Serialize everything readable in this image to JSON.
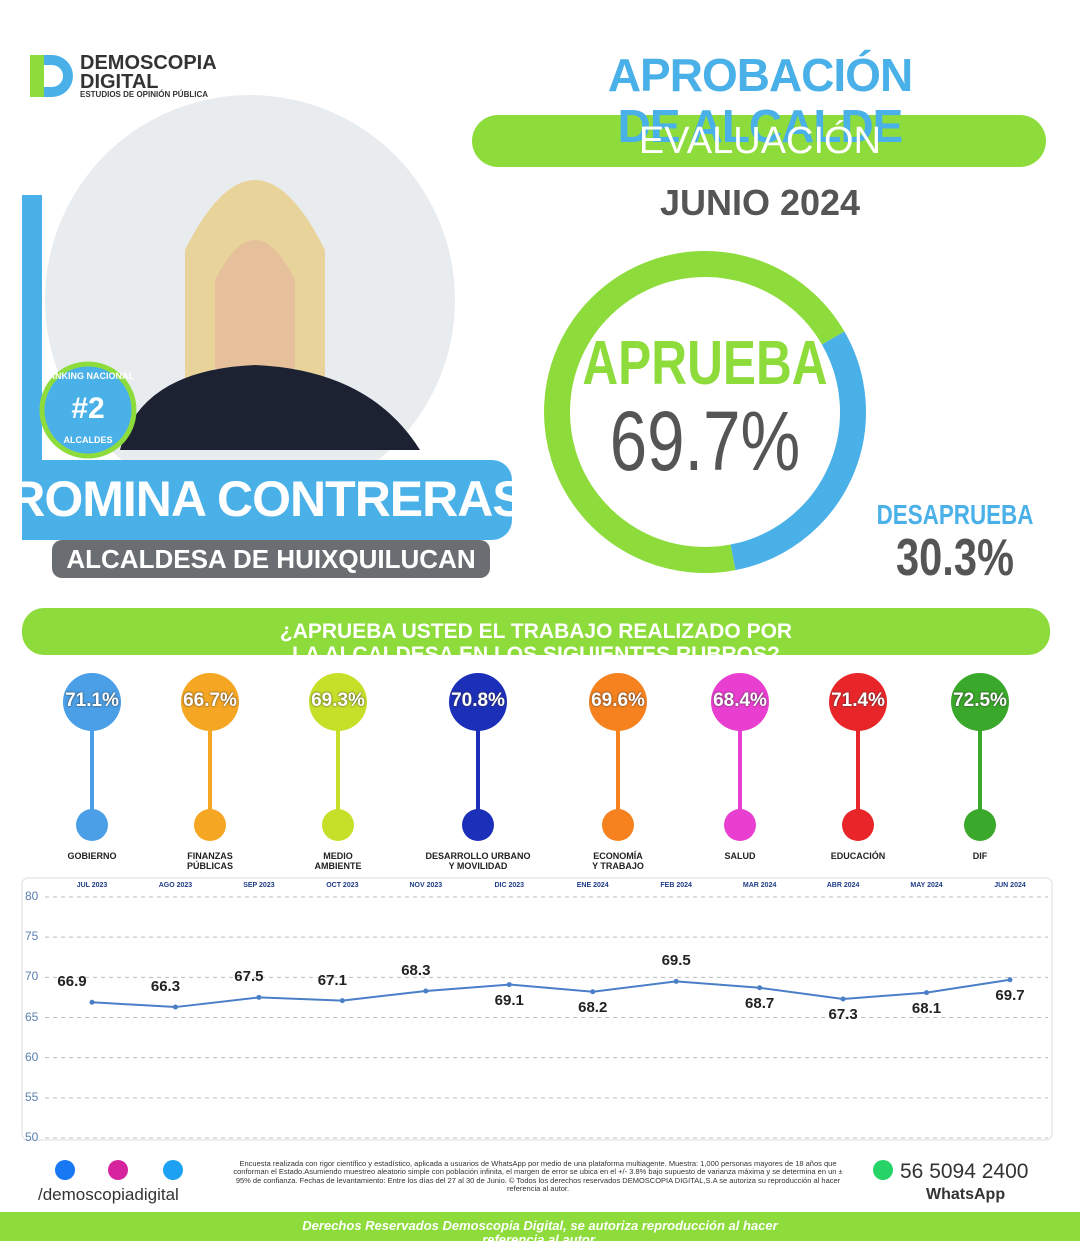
{
  "brand": {
    "name1": "DEMOSCOPIA",
    "name2": "DIGITAL",
    "tagline": "ESTUDIOS DE OPINIÓN PÚBLICA"
  },
  "header": {
    "title": "APROBACIÓN DE ALCALDE",
    "subtitle": "EVALUACIÓN DEL MES",
    "period": "JUNIO 2024"
  },
  "profile": {
    "badge_top": "RANKING NACIONAL",
    "badge_rank": "#2",
    "badge_bottom": "ALCALDES",
    "name": "ROMINA CONTRERAS",
    "role": "ALCALDESA DE HUIXQUILUCAN"
  },
  "question": "¿APRUEBA USTED EL TRABAJO REALIZADO POR LA ALCALDESA EN LOS SIGUIENTES RUBROS?",
  "chart_data": [
    {
      "type": "donut",
      "categories": [
        "APRUEBA",
        "DESAPRUEBA"
      ],
      "values": [
        69.7,
        30.3
      ],
      "value_labels": [
        "69.7%",
        "30.3%"
      ],
      "colors": [
        "#8edc3c",
        "#4ab0e8"
      ]
    },
    {
      "type": "dot",
      "categories": [
        "GOBIERNO",
        "FINANZAS\nPÚBLICAS",
        "MEDIO\nAMBIENTE",
        "DESARROLLO URBANO\nY MOVILIDAD",
        "ECONOMÍA\nY TRABAJO",
        "SALUD",
        "EDUCACIÓN",
        "DIF"
      ],
      "values": [
        71.1,
        66.7,
        69.3,
        70.8,
        69.6,
        68.4,
        71.4,
        72.5
      ],
      "value_labels": [
        "71.1%",
        "66.7%",
        "69.3%",
        "70.8%",
        "69.6%",
        "68.4%",
        "71.4%",
        "72.5%"
      ],
      "colors": [
        "#4a9fe6",
        "#f5a623",
        "#c6e02a",
        "#1c2fb8",
        "#f5821f",
        "#e93fd0",
        "#e8262a",
        "#3aa82a"
      ]
    },
    {
      "type": "line",
      "categories": [
        "JUL 2023",
        "AGO 2023",
        "SEP 2023",
        "OCT 2023",
        "NOV 2023",
        "DIC 2023",
        "ENE 2024",
        "FEB 2024",
        "MAR 2024",
        "ABR 2024",
        "MAY 2024",
        "JUN 2024"
      ],
      "values": [
        66.9,
        66.3,
        67.5,
        67.1,
        68.3,
        69.1,
        68.2,
        69.5,
        68.7,
        67.3,
        68.1,
        69.7
      ],
      "color": "#4a7fc8",
      "ylim": [
        50,
        80
      ],
      "yticks": [
        50,
        55,
        60,
        65,
        70,
        75,
        80
      ],
      "grid": true
    }
  ],
  "footer": {
    "handle": "/demoscopiadigital",
    "disclaimer": "Encuesta realizada con rigor científico y estadístico, aplicada a usuarios de WhatsApp por medio de una plataforma multiagente. Muestra: 1,000 personas mayores de 18 años que conforman el Estado.Asumiendo muestreo aleatorio simple con población infinita, el margen de error se ubica en el +/- 3.8% bajo supuesto de varianza máxima y se determina en un ± 95% de confianza. Fechas de levantamiento: Entre los días del 27 al 30 de Junio. © Todos los derechos reservados DEMOSCOPIA DIGITAL,S.A se autoriza su reproducción al hacer referencia al autor.",
    "phone": "56 5094 2400",
    "whatsapp": "WhatsApp",
    "rights": "Derechos Reservados Demoscopia Digital, se autoriza reproducción al hacer referencia al autor."
  }
}
